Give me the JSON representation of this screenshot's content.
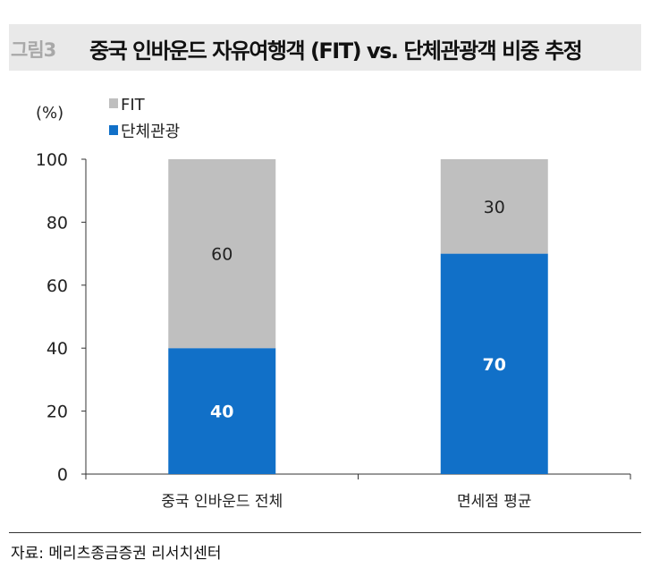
{
  "figure_label": "그림3",
  "title": "중국 인바운드 자유여행객 (FIT) vs. 단체관광객 비중 추정",
  "source": "자료: 메리츠종금증권 리서치센터",
  "chart_data": {
    "type": "bar",
    "stacked": true,
    "ylabel": "(%)",
    "ylim": [
      0,
      100
    ],
    "yticks": [
      0,
      20,
      40,
      60,
      80,
      100
    ],
    "categories": [
      "중국 인바운드 전체",
      "면세점 평균"
    ],
    "series": [
      {
        "name": "단체관광",
        "values": [
          40,
          70
        ],
        "color": "#1170c8"
      },
      {
        "name": "FIT",
        "values": [
          60,
          30
        ],
        "color": "#bfbfbf"
      }
    ],
    "legend_order": [
      "FIT",
      "단체관광"
    ],
    "legend_placement": "top-left",
    "grid": false
  }
}
